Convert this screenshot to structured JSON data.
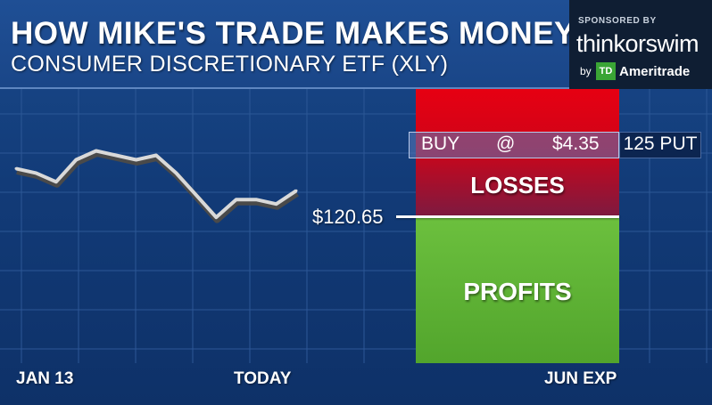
{
  "header": {
    "title": "HOW MIKE'S TRADE MAKES MONEY",
    "subtitle": "CONSUMER DISCRETIONARY ETF (XLY)"
  },
  "sponsor": {
    "label": "SPONSORED BY",
    "brand": "thinkorswim",
    "by": "by",
    "logo_mark": "TD",
    "company": "Ameritrade"
  },
  "trade": {
    "action": "BUY",
    "at": "@",
    "price": "$4.35",
    "contract": "125 PUT"
  },
  "chart_data": {
    "type": "line",
    "x_tick_labels": [
      "JAN 13",
      "TODAY",
      "JUN EXP"
    ],
    "series": [
      {
        "values": [
          121.4,
          121.3,
          121.1,
          121.6,
          121.8,
          121.7,
          121.6,
          121.7,
          121.3,
          120.8,
          120.3,
          120.7,
          120.7,
          120.6,
          120.9
        ]
      }
    ],
    "reference_line": {
      "label": "$120.65",
      "value": 120.65
    },
    "zones": [
      {
        "label": "LOSSES",
        "color": "#e3001b",
        "side": "above"
      },
      {
        "label": "PROFITS",
        "color": "#63b43a",
        "side": "below"
      }
    ],
    "ylim": [
      117.0,
      123.2
    ],
    "grid": true
  },
  "colors": {
    "background": "#123b78",
    "losses_top": "#e60012",
    "losses_bottom": "#8a1a3a",
    "profits": "#5fb534",
    "line": "#d9d9d9"
  }
}
